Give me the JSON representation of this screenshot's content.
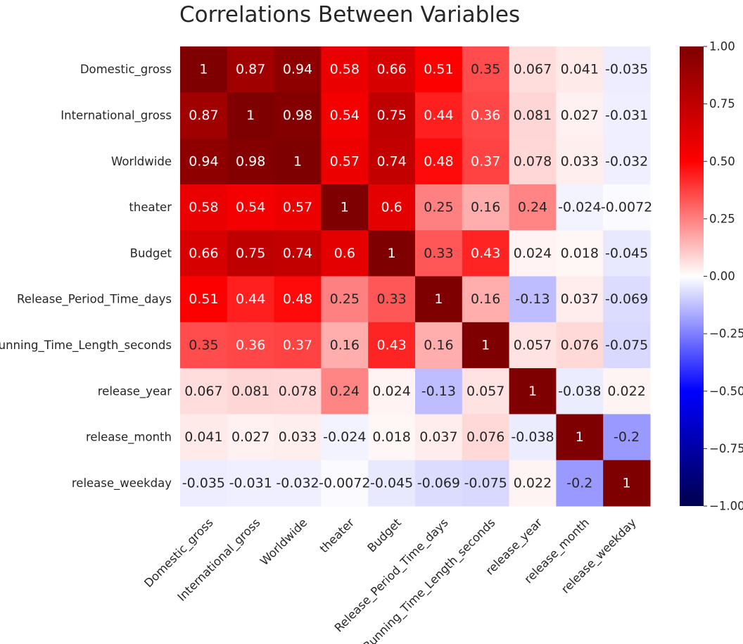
{
  "chart_data": {
    "type": "heatmap",
    "title": "Correlations Between Variables",
    "row_labels": [
      "Domestic_gross",
      "International_gross",
      "Worldwide",
      "theater",
      "Budget",
      "Release_Period_Time_days",
      "Running_Time_Length_seconds",
      "release_year",
      "release_month",
      "release_weekday"
    ],
    "col_labels": [
      "Domestic_gross",
      "International_gross",
      "Worldwide",
      "theater",
      "Budget",
      "Release_Period_Time_days",
      "Running_Time_Length_seconds",
      "release_year",
      "release_month",
      "release_weekday"
    ],
    "values": [
      [
        1,
        0.87,
        0.94,
        0.58,
        0.66,
        0.51,
        0.35,
        0.067,
        0.041,
        -0.035
      ],
      [
        0.87,
        1,
        0.98,
        0.54,
        0.75,
        0.44,
        0.36,
        0.081,
        0.027,
        -0.031
      ],
      [
        0.94,
        0.98,
        1,
        0.57,
        0.74,
        0.48,
        0.37,
        0.078,
        0.033,
        -0.032
      ],
      [
        0.58,
        0.54,
        0.57,
        1,
        0.6,
        0.25,
        0.16,
        0.24,
        -0.024,
        -0.0072
      ],
      [
        0.66,
        0.75,
        0.74,
        0.6,
        1,
        0.33,
        0.43,
        0.024,
        0.018,
        -0.045
      ],
      [
        0.51,
        0.44,
        0.48,
        0.25,
        0.33,
        1,
        0.16,
        -0.13,
        0.037,
        -0.069
      ],
      [
        0.35,
        0.36,
        0.37,
        0.16,
        0.43,
        0.16,
        1,
        0.057,
        0.076,
        -0.075
      ],
      [
        0.067,
        0.081,
        0.078,
        0.24,
        0.024,
        -0.13,
        0.057,
        1,
        -0.038,
        0.022
      ],
      [
        0.041,
        0.027,
        0.033,
        -0.024,
        0.018,
        0.037,
        0.076,
        -0.038,
        1,
        -0.2
      ],
      [
        -0.035,
        -0.031,
        -0.032,
        -0.0072,
        -0.045,
        -0.069,
        -0.075,
        0.022,
        -0.2,
        1
      ]
    ],
    "cell_labels": [
      [
        "1",
        "0.87",
        "0.94",
        "0.58",
        "0.66",
        "0.51",
        "0.35",
        "0.067",
        "0.041",
        "-0.035"
      ],
      [
        "0.87",
        "1",
        "0.98",
        "0.54",
        "0.75",
        "0.44",
        "0.36",
        "0.081",
        "0.027",
        "-0.031"
      ],
      [
        "0.94",
        "0.98",
        "1",
        "0.57",
        "0.74",
        "0.48",
        "0.37",
        "0.078",
        "0.033",
        "-0.032"
      ],
      [
        "0.58",
        "0.54",
        "0.57",
        "1",
        "0.6",
        "0.25",
        "0.16",
        "0.24",
        "-0.024",
        "-0.0072"
      ],
      [
        "0.66",
        "0.75",
        "0.74",
        "0.6",
        "1",
        "0.33",
        "0.43",
        "0.024",
        "0.018",
        "-0.045"
      ],
      [
        "0.51",
        "0.44",
        "0.48",
        "0.25",
        "0.33",
        "1",
        "0.16",
        "-0.13",
        "0.037",
        "-0.069"
      ],
      [
        "0.35",
        "0.36",
        "0.37",
        "0.16",
        "0.43",
        "0.16",
        "1",
        "0.057",
        "0.076",
        "-0.075"
      ],
      [
        "0.067",
        "0.081",
        "0.078",
        "0.24",
        "0.024",
        "-0.13",
        "0.057",
        "1",
        "-0.038",
        "0.022"
      ],
      [
        "0.041",
        "0.027",
        "0.033",
        "-0.024",
        "0.018",
        "0.037",
        "0.076",
        "-0.038",
        "1",
        "-0.2"
      ],
      [
        "-0.035",
        "-0.031",
        "-0.032",
        "-0.0072",
        "-0.045",
        "-0.069",
        "-0.075",
        "0.022",
        "-0.2",
        "1"
      ]
    ],
    "colormap": "seismic",
    "colormap_stops": [
      "#00004c",
      "#0000ff",
      "#ffffff",
      "#ff0000",
      "#7f0000"
    ],
    "vmin": -1,
    "vmax": 1,
    "colorbar_ticks": [
      1.0,
      0.75,
      0.5,
      0.25,
      0.0,
      -0.25,
      -0.5,
      -0.75,
      -1.0
    ],
    "colorbar_tick_labels": [
      "1.00",
      "0.75",
      "0.50",
      "0.25",
      "0.00",
      "−0.25",
      "−0.50",
      "−0.75",
      "−1.00"
    ],
    "xlabel": "",
    "ylabel": "",
    "grid": false,
    "legend": "colorbar-right"
  }
}
